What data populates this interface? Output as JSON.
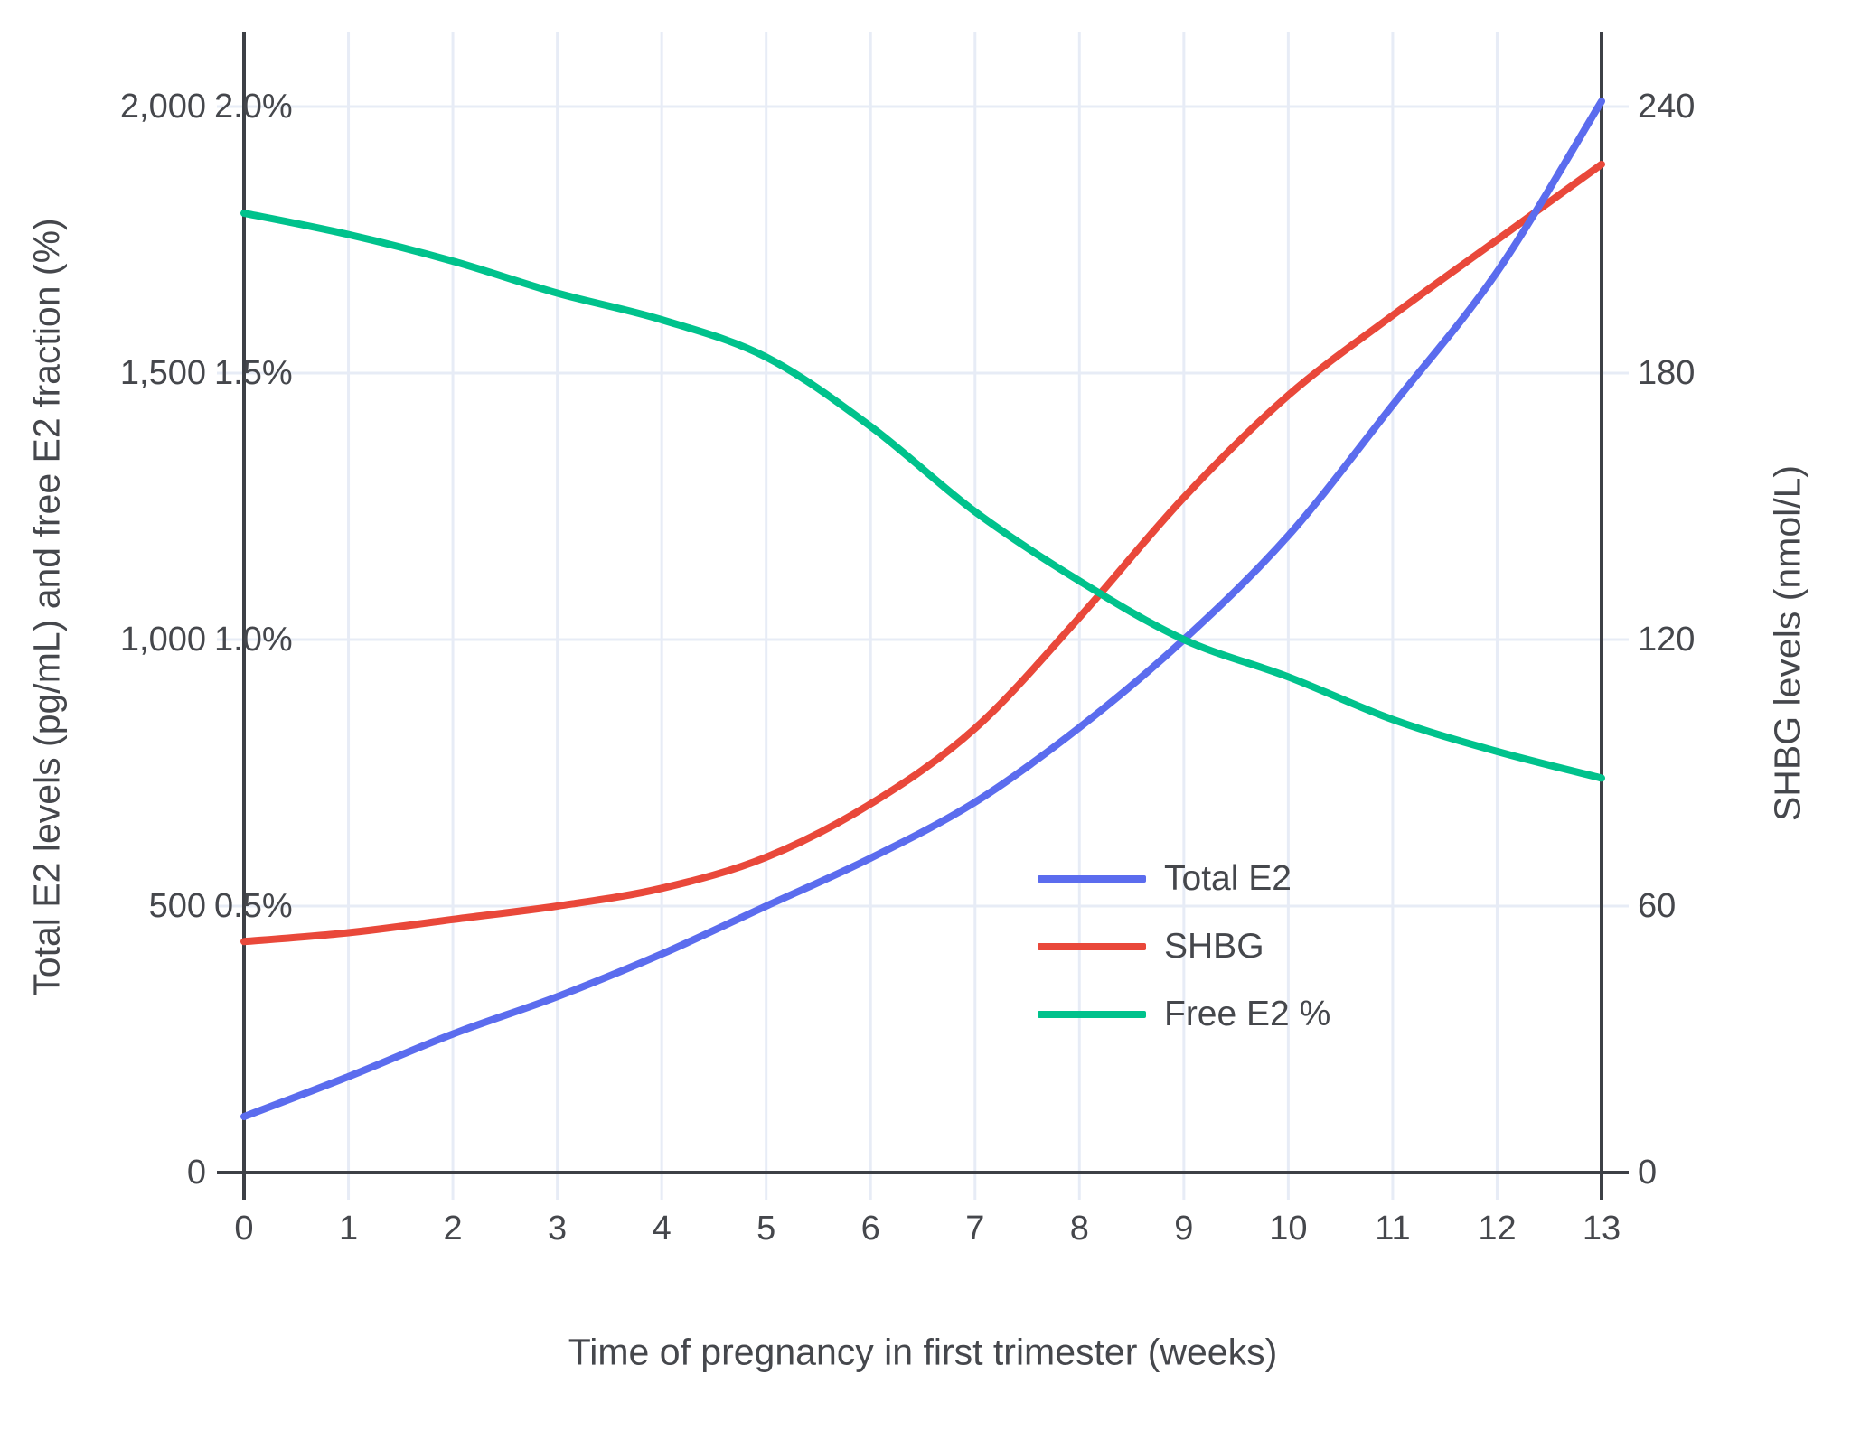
{
  "chart_data": {
    "type": "line",
    "x": [
      0,
      1,
      2,
      3,
      4,
      5,
      6,
      7,
      8,
      9,
      10,
      11,
      12,
      13
    ],
    "x_tick_labels": [
      "0",
      "1",
      "2",
      "3",
      "4",
      "5",
      "6",
      "7",
      "8",
      "9",
      "10",
      "11",
      "12",
      "13"
    ],
    "series": [
      {
        "name": "SHBG",
        "axis": "right",
        "color": "#E9483A",
        "unit": "nmol/L",
        "values": [
          52,
          54,
          57,
          60,
          64,
          71,
          83,
          100,
          125,
          152,
          175,
          193,
          210,
          227
        ]
      },
      {
        "name": "Total E2",
        "axis": "left",
        "color": "#5B6CEE",
        "unit": "pg/mL",
        "values": [
          105,
          180,
          260,
          330,
          410,
          500,
          590,
          695,
          835,
          1000,
          1195,
          1440,
          1690,
          2010
        ]
      },
      {
        "name": "Free E2 %",
        "axis": "left_percent",
        "color": "#00C28C",
        "unit": "%",
        "values": [
          1.8,
          1.76,
          1.71,
          1.65,
          1.6,
          1.53,
          1.4,
          1.24,
          1.11,
          1.0,
          0.93,
          0.85,
          0.79,
          0.74
        ]
      }
    ],
    "legend_order": [
      "Total E2",
      "SHBG",
      "Free E2 %"
    ],
    "xlabel": "Time of pregnancy in first trimester (weeks)",
    "ylabel_left": "Total E2 levels (pg/mL) and free E2 fraction (%)",
    "ylabel_right": "SHBG levels (nmol/L)",
    "xlim": [
      0,
      13
    ],
    "ylim_left": [
      0,
      2140
    ],
    "ylim_right": [
      0,
      257
    ],
    "grid": true,
    "legend_position": "inside-lower-right",
    "y_left_ticks": [
      {
        "v": 0,
        "label": "0"
      },
      {
        "v": 500,
        "label": "500"
      },
      {
        "v": 1000,
        "label": "1,000"
      },
      {
        "v": 1500,
        "label": "1,500"
      },
      {
        "v": 2000,
        "label": "2,000"
      }
    ],
    "y_left_percent_annotations": [
      {
        "v": 500,
        "label": "0.5%"
      },
      {
        "v": 1000,
        "label": "1.0%"
      },
      {
        "v": 1500,
        "label": "1.5%"
      },
      {
        "v": 2000,
        "label": "2.0%"
      }
    ],
    "y_right_ticks": [
      {
        "v": 0,
        "label": "0"
      },
      {
        "v": 60,
        "label": "60"
      },
      {
        "v": 120,
        "label": "120"
      },
      {
        "v": 180,
        "label": "180"
      },
      {
        "v": 240,
        "label": "240"
      }
    ],
    "colors": {
      "grid": "#E7ECF6",
      "axis_line": "#3D4046",
      "text": "#45474C",
      "background": "#FFFFFF"
    }
  }
}
